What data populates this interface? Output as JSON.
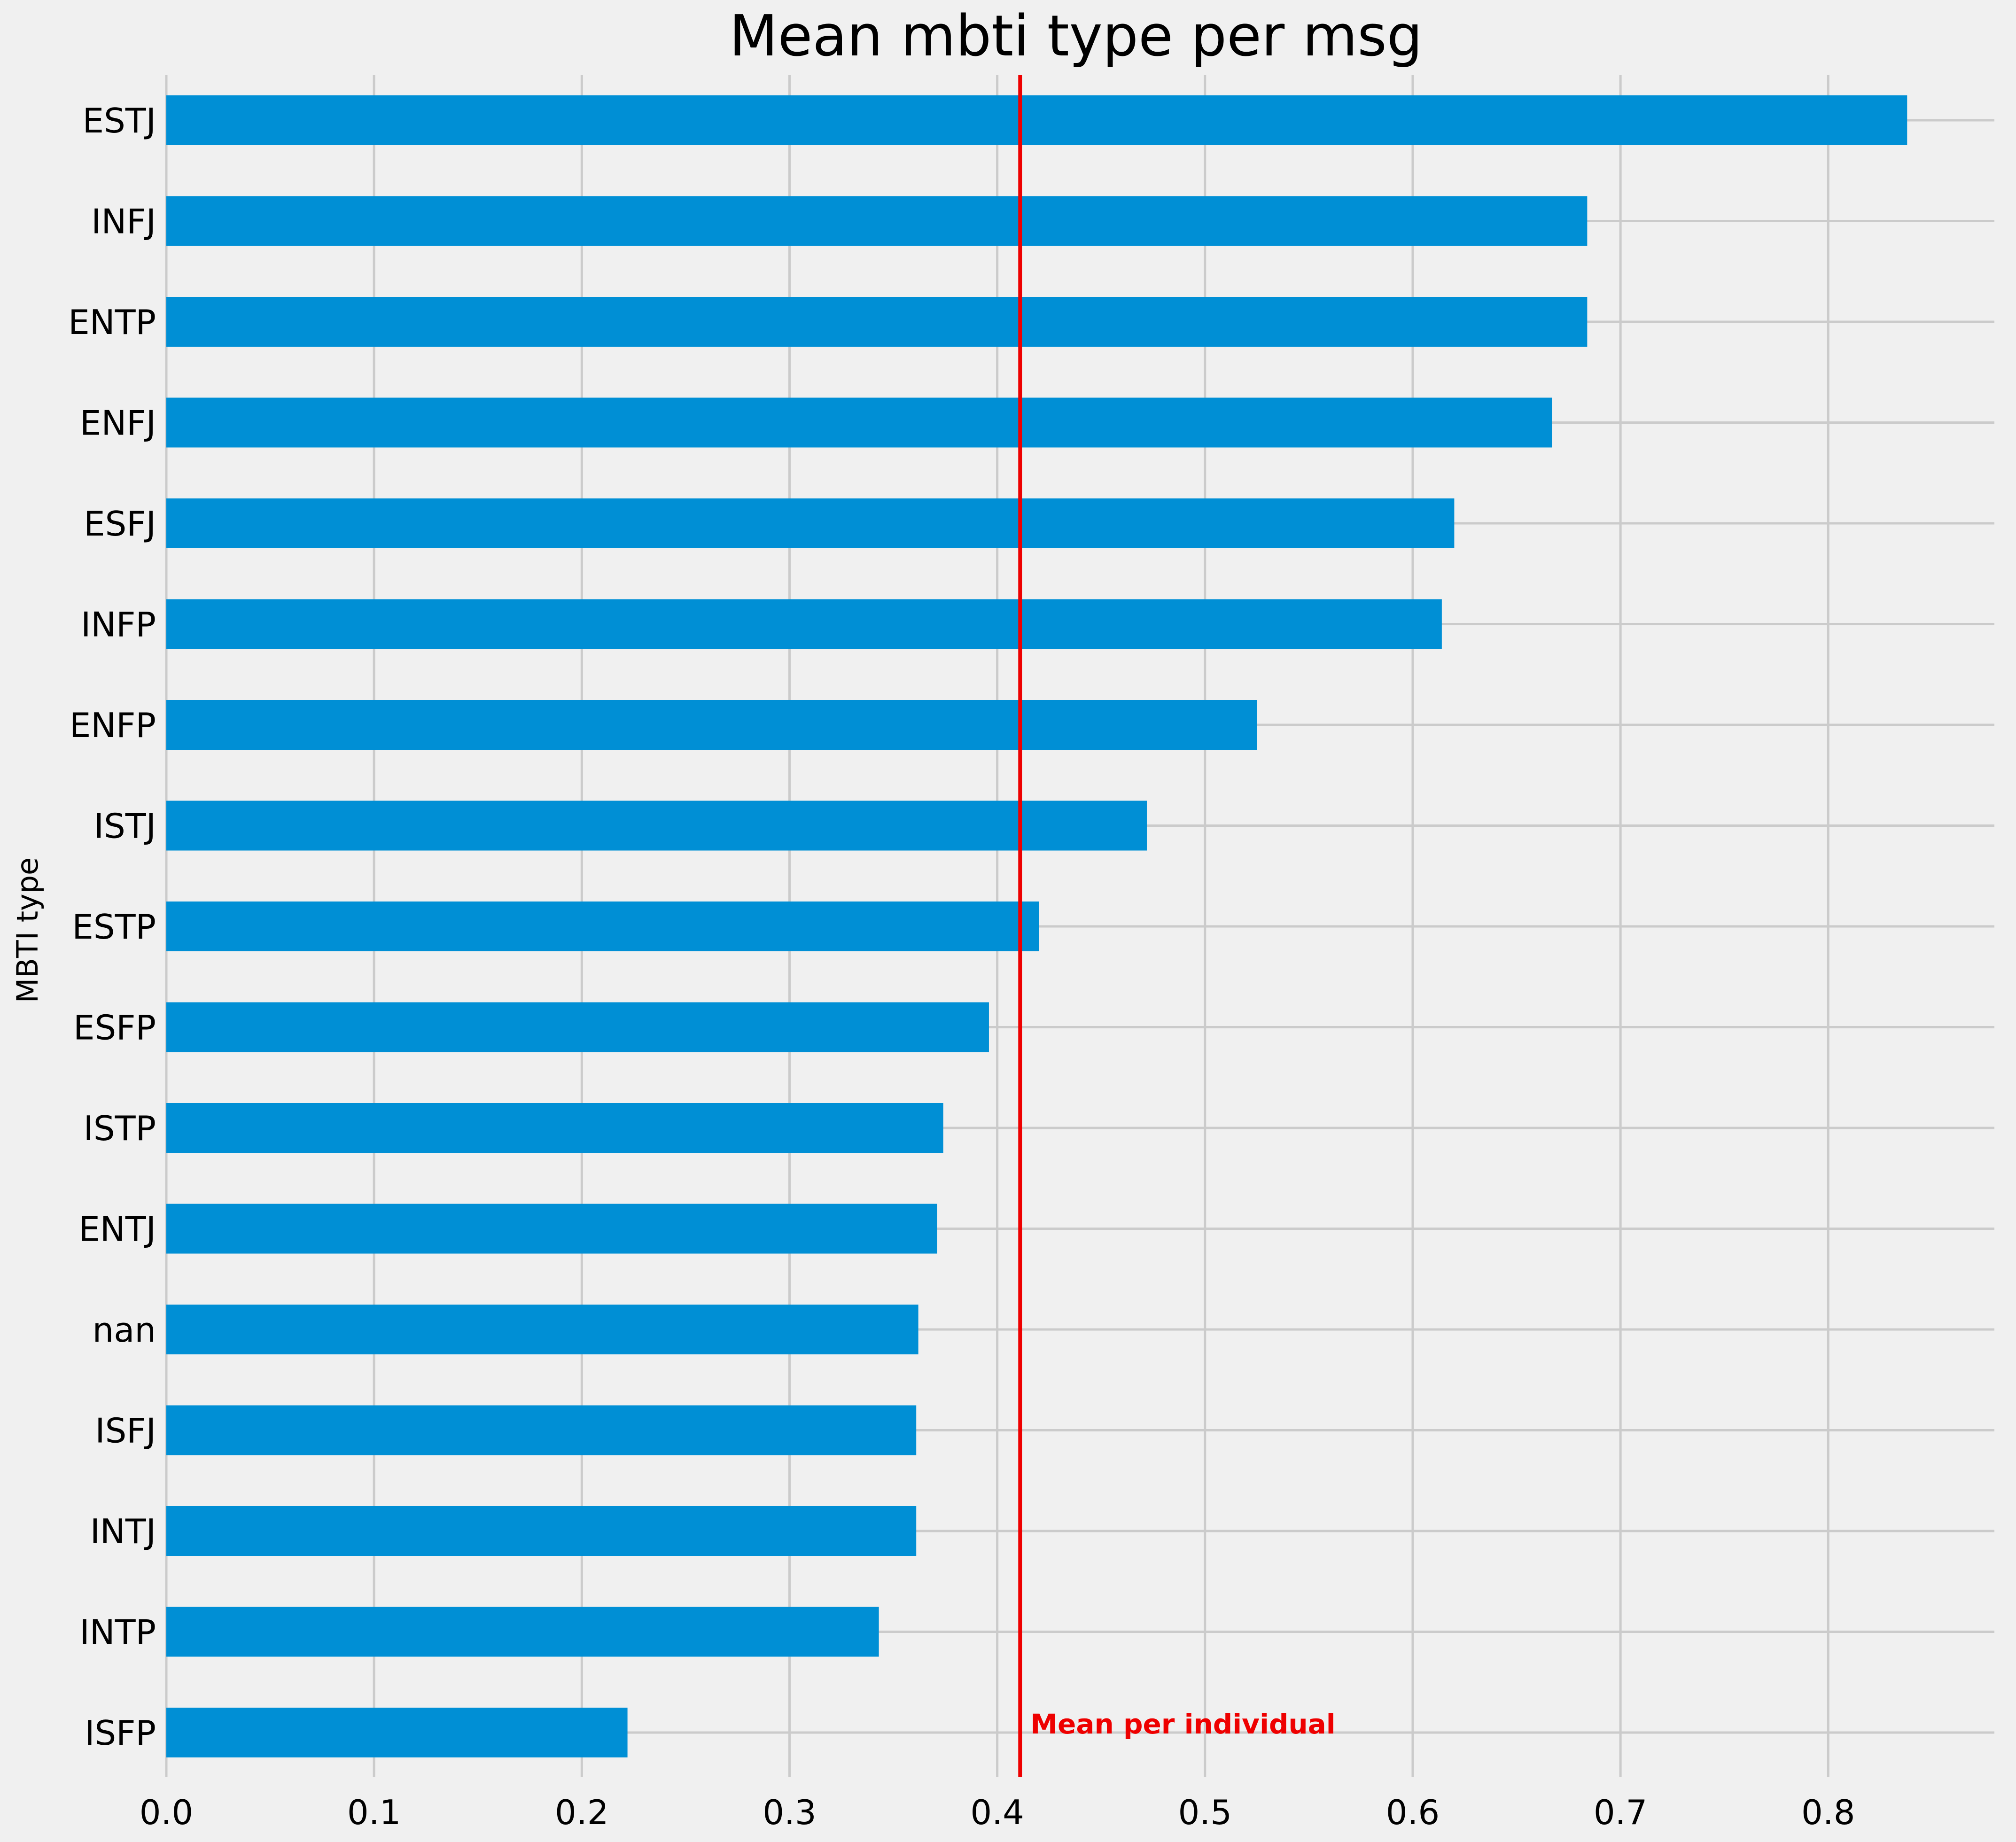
{
  "chart_data": {
    "type": "bar",
    "orientation": "horizontal",
    "title": "Mean mbti type per msg",
    "ylabel": "MBTI type",
    "xlabel": "",
    "categories": [
      "ESTJ",
      "INFJ",
      "ENTP",
      "ENFJ",
      "ESFJ",
      "INFP",
      "ENFP",
      "ISTJ",
      "ESTP",
      "ESFP",
      "ISTP",
      "ENTJ",
      "nan",
      "ISFJ",
      "INTJ",
      "INTP",
      "ISFP"
    ],
    "values": [
      0.838,
      0.684,
      0.684,
      0.667,
      0.62,
      0.614,
      0.525,
      0.472,
      0.42,
      0.396,
      0.374,
      0.371,
      0.362,
      0.361,
      0.361,
      0.343,
      0.222
    ],
    "xlim": [
      0,
      0.88
    ],
    "xticks": [
      0.0,
      0.1,
      0.2,
      0.3,
      0.4,
      0.5,
      0.6,
      0.7,
      0.8
    ],
    "xtick_labels": [
      "0.0",
      "0.1",
      "0.2",
      "0.3",
      "0.4",
      "0.5",
      "0.6",
      "0.7",
      "0.8"
    ],
    "grid": true,
    "bar_color": "#008fd5",
    "background_color": "#f0f0f0",
    "grid_color": "#cbcbcb",
    "reference_line": {
      "x": 0.411,
      "label": "Mean per individual",
      "color": "#ee0000"
    }
  }
}
